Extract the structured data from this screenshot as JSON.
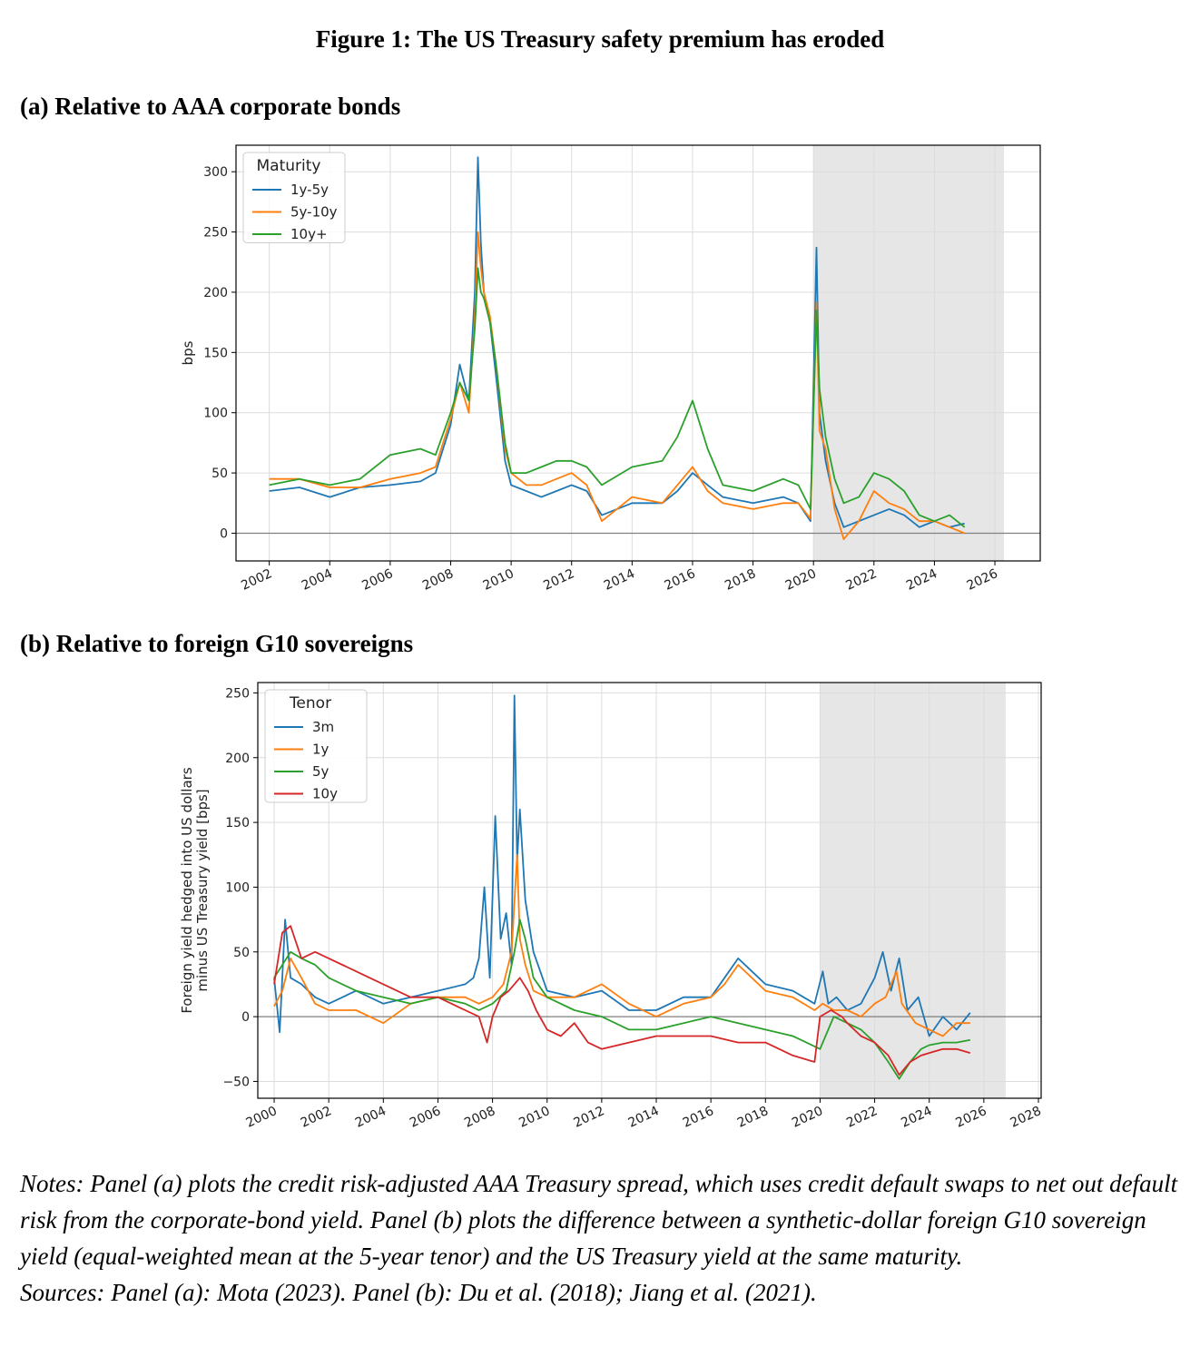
{
  "figure_title": "Figure 1: The US Treasury safety premium has eroded",
  "panel_a_title": "(a) Relative to AAA corporate bonds",
  "panel_b_title": "(b) Relative to foreign G10 sovereigns",
  "notes": "Notes: Panel (a) plots the credit risk-adjusted AAA Treasury spread, which uses credit default swaps to net out default risk from the corporate-bond yield. Panel (b) plots the difference between a synthetic-dollar foreign G10 sovereign yield (equal-weighted mean at the 5-year tenor) and the US Treasury yield at the same maturity.",
  "sources": "Sources: Panel (a): Mota (2023). Panel (b): Du et al. (2018); Jiang et al. (2021).",
  "chart_data": [
    {
      "type": "line",
      "ylabel": "bps",
      "xlim": [
        2000.9,
        2027.5
      ],
      "ylim": [
        -23,
        322
      ],
      "xticks": [
        2002,
        2004,
        2006,
        2008,
        2010,
        2012,
        2014,
        2016,
        2018,
        2020,
        2022,
        2024,
        2026
      ],
      "yticks": [
        0,
        50,
        100,
        150,
        200,
        250,
        300
      ],
      "grid": true,
      "zero_line": true,
      "shaded_region": [
        2020.0,
        2026.3
      ],
      "legend": {
        "title": "Maturity",
        "position": "top-left"
      },
      "series": [
        {
          "name": "1y-5y",
          "color": "#1f77b4",
          "x": [
            2002.0,
            2003.0,
            2004.0,
            2005.0,
            2006.0,
            2007.0,
            2007.5,
            2008.0,
            2008.3,
            2008.6,
            2008.8,
            2008.9,
            2009.0,
            2009.1,
            2009.3,
            2009.5,
            2009.8,
            2010.0,
            2010.5,
            2011.0,
            2011.5,
            2012.0,
            2012.5,
            2013.0,
            2014.0,
            2015.0,
            2015.5,
            2016.0,
            2016.5,
            2017.0,
            2018.0,
            2019.0,
            2019.5,
            2019.9,
            2020.1,
            2020.2,
            2020.4,
            2020.7,
            2021.0,
            2021.5,
            2022.0,
            2022.5,
            2023.0,
            2023.5,
            2024.0,
            2024.5,
            2025.0
          ],
          "y": [
            35,
            38,
            30,
            38,
            40,
            43,
            50,
            90,
            140,
            110,
            200,
            312,
            240,
            200,
            175,
            130,
            60,
            40,
            35,
            30,
            35,
            40,
            35,
            15,
            25,
            25,
            35,
            50,
            40,
            30,
            25,
            30,
            25,
            10,
            237,
            100,
            60,
            25,
            5,
            10,
            15,
            20,
            15,
            5,
            10,
            5,
            8
          ]
        },
        {
          "name": "5y-10y",
          "color": "#ff7f0e",
          "x": [
            2002.0,
            2003.0,
            2004.0,
            2005.0,
            2006.0,
            2007.0,
            2007.5,
            2008.0,
            2008.3,
            2008.6,
            2008.8,
            2008.9,
            2009.0,
            2009.1,
            2009.3,
            2009.5,
            2009.8,
            2010.0,
            2010.5,
            2011.0,
            2011.5,
            2012.0,
            2012.5,
            2013.0,
            2014.0,
            2015.0,
            2015.5,
            2016.0,
            2016.5,
            2017.0,
            2018.0,
            2019.0,
            2019.5,
            2019.9,
            2020.1,
            2020.2,
            2020.4,
            2020.7,
            2021.0,
            2021.5,
            2022.0,
            2022.5,
            2023.0,
            2023.5,
            2024.0,
            2024.5,
            2025.0
          ],
          "y": [
            45,
            45,
            38,
            38,
            45,
            50,
            55,
            95,
            125,
            100,
            180,
            250,
            220,
            200,
            180,
            140,
            70,
            50,
            40,
            40,
            45,
            50,
            40,
            10,
            30,
            25,
            40,
            55,
            35,
            25,
            20,
            25,
            25,
            12,
            192,
            85,
            70,
            20,
            -5,
            10,
            35,
            25,
            20,
            10,
            10,
            5,
            0
          ]
        },
        {
          "name": "10y+",
          "color": "#2ca02c",
          "x": [
            2002.0,
            2003.0,
            2004.0,
            2005.0,
            2006.0,
            2007.0,
            2007.5,
            2008.0,
            2008.3,
            2008.6,
            2008.8,
            2008.9,
            2009.0,
            2009.1,
            2009.3,
            2009.5,
            2009.8,
            2010.0,
            2010.5,
            2011.0,
            2011.5,
            2012.0,
            2012.5,
            2013.0,
            2014.0,
            2015.0,
            2015.5,
            2016.0,
            2016.5,
            2017.0,
            2018.0,
            2019.0,
            2019.5,
            2019.9,
            2020.1,
            2020.2,
            2020.4,
            2020.7,
            2021.0,
            2021.5,
            2022.0,
            2022.5,
            2023.0,
            2023.5,
            2024.0,
            2024.5,
            2025.0
          ],
          "y": [
            40,
            45,
            40,
            45,
            65,
            70,
            65,
            100,
            125,
            110,
            170,
            220,
            200,
            195,
            175,
            140,
            75,
            50,
            50,
            55,
            60,
            60,
            55,
            40,
            55,
            60,
            80,
            110,
            70,
            40,
            35,
            45,
            40,
            20,
            185,
            120,
            80,
            45,
            25,
            30,
            50,
            45,
            35,
            15,
            10,
            15,
            5
          ]
        }
      ]
    },
    {
      "type": "line",
      "ylabel": "Foreign yield hedged into US dollars\nminus US Treasury yield  [bps]",
      "xlim": [
        1999.4,
        2028.1
      ],
      "ylim": [
        -63,
        258
      ],
      "xticks": [
        2000,
        2002,
        2004,
        2006,
        2008,
        2010,
        2012,
        2014,
        2016,
        2018,
        2020,
        2022,
        2024,
        2026,
        2028
      ],
      "yticks": [
        -50,
        0,
        50,
        100,
        150,
        200,
        250
      ],
      "grid": true,
      "zero_line": true,
      "shaded_region": [
        2020.0,
        2026.8
      ],
      "legend": {
        "title": "Tenor",
        "position": "top-left"
      },
      "series": [
        {
          "name": "3m",
          "color": "#1f77b4",
          "x": [
            2000.0,
            2000.2,
            2000.4,
            2000.6,
            2001.0,
            2001.5,
            2002.0,
            2003.0,
            2004.0,
            2005.0,
            2006.0,
            2007.0,
            2007.3,
            2007.5,
            2007.7,
            2007.9,
            2008.1,
            2008.3,
            2008.5,
            2008.7,
            2008.8,
            2008.9,
            2009.0,
            2009.2,
            2009.5,
            2010.0,
            2011.0,
            2012.0,
            2013.0,
            2014.0,
            2015.0,
            2016.0,
            2016.5,
            2017.0,
            2017.5,
            2018.0,
            2019.0,
            2019.8,
            2020.1,
            2020.3,
            2020.6,
            2021.0,
            2021.5,
            2022.0,
            2022.3,
            2022.6,
            2022.9,
            2023.2,
            2023.6,
            2024.0,
            2024.5,
            2025.0,
            2025.5
          ],
          "y": [
            30,
            -12,
            75,
            30,
            25,
            15,
            10,
            20,
            10,
            15,
            20,
            25,
            30,
            45,
            100,
            30,
            155,
            60,
            80,
            40,
            248,
            120,
            160,
            90,
            50,
            20,
            15,
            20,
            5,
            5,
            15,
            15,
            30,
            45,
            35,
            25,
            20,
            10,
            35,
            10,
            15,
            5,
            10,
            30,
            50,
            20,
            45,
            5,
            15,
            -15,
            0,
            -10,
            3
          ]
        },
        {
          "name": "1y",
          "color": "#ff7f0e",
          "x": [
            2000.0,
            2000.3,
            2000.6,
            2001.0,
            2001.5,
            2002.0,
            2003.0,
            2004.0,
            2005.0,
            2006.0,
            2007.0,
            2007.5,
            2008.0,
            2008.4,
            2008.7,
            2008.9,
            2009.0,
            2009.2,
            2009.5,
            2010.0,
            2011.0,
            2012.0,
            2013.0,
            2014.0,
            2015.0,
            2016.0,
            2016.5,
            2017.0,
            2017.5,
            2018.0,
            2019.0,
            2019.8,
            2020.1,
            2020.5,
            2021.0,
            2021.5,
            2022.0,
            2022.4,
            2022.8,
            2023.0,
            2023.5,
            2024.0,
            2024.5,
            2025.0,
            2025.5
          ],
          "y": [
            8,
            20,
            45,
            30,
            10,
            5,
            5,
            -5,
            10,
            15,
            15,
            10,
            15,
            25,
            50,
            125,
            60,
            40,
            20,
            15,
            15,
            25,
            10,
            0,
            10,
            15,
            25,
            40,
            30,
            20,
            15,
            5,
            10,
            5,
            5,
            0,
            10,
            15,
            35,
            10,
            -5,
            -10,
            -15,
            -5,
            -5
          ]
        },
        {
          "name": "5y",
          "color": "#2ca02c",
          "x": [
            2000.0,
            2000.3,
            2000.6,
            2001.0,
            2001.5,
            2002.0,
            2003.0,
            2004.0,
            2005.0,
            2006.0,
            2007.0,
            2007.5,
            2008.0,
            2008.5,
            2008.8,
            2009.0,
            2009.2,
            2009.5,
            2010.0,
            2011.0,
            2012.0,
            2013.0,
            2014.0,
            2015.0,
            2016.0,
            2017.0,
            2018.0,
            2019.0,
            2019.5,
            2020.0,
            2020.5,
            2021.0,
            2021.5,
            2022.0,
            2022.5,
            2022.9,
            2023.3,
            2023.7,
            2024.0,
            2024.5,
            2025.0,
            2025.5
          ],
          "y": [
            30,
            40,
            50,
            45,
            40,
            30,
            20,
            15,
            10,
            15,
            10,
            5,
            10,
            20,
            50,
            75,
            60,
            30,
            15,
            5,
            0,
            -10,
            -10,
            -5,
            0,
            -5,
            -10,
            -15,
            -20,
            -25,
            0,
            -5,
            -10,
            -20,
            -35,
            -48,
            -35,
            -25,
            -22,
            -20,
            -20,
            -18
          ]
        },
        {
          "name": "10y",
          "color": "#d62728",
          "x": [
            2000.0,
            2000.3,
            2000.6,
            2001.0,
            2001.5,
            2002.0,
            2002.5,
            2003.0,
            2004.0,
            2005.0,
            2006.0,
            2007.0,
            2007.5,
            2007.8,
            2008.0,
            2008.3,
            2008.6,
            2009.0,
            2009.3,
            2009.6,
            2010.0,
            2010.5,
            2011.0,
            2011.5,
            2012.0,
            2013.0,
            2014.0,
            2015.0,
            2016.0,
            2017.0,
            2018.0,
            2019.0,
            2019.8,
            2020.0,
            2020.4,
            2020.8,
            2021.0,
            2021.5,
            2022.0,
            2022.5,
            2022.9,
            2023.3,
            2023.7,
            2024.0,
            2024.5,
            2025.0,
            2025.5
          ],
          "y": [
            25,
            65,
            70,
            45,
            50,
            45,
            40,
            35,
            25,
            15,
            15,
            5,
            0,
            -20,
            0,
            15,
            20,
            30,
            20,
            5,
            -10,
            -15,
            -5,
            -20,
            -25,
            -20,
            -15,
            -15,
            -15,
            -20,
            -20,
            -30,
            -35,
            0,
            5,
            0,
            -5,
            -15,
            -20,
            -30,
            -45,
            -35,
            -30,
            -28,
            -25,
            -25,
            -28
          ]
        }
      ]
    }
  ]
}
